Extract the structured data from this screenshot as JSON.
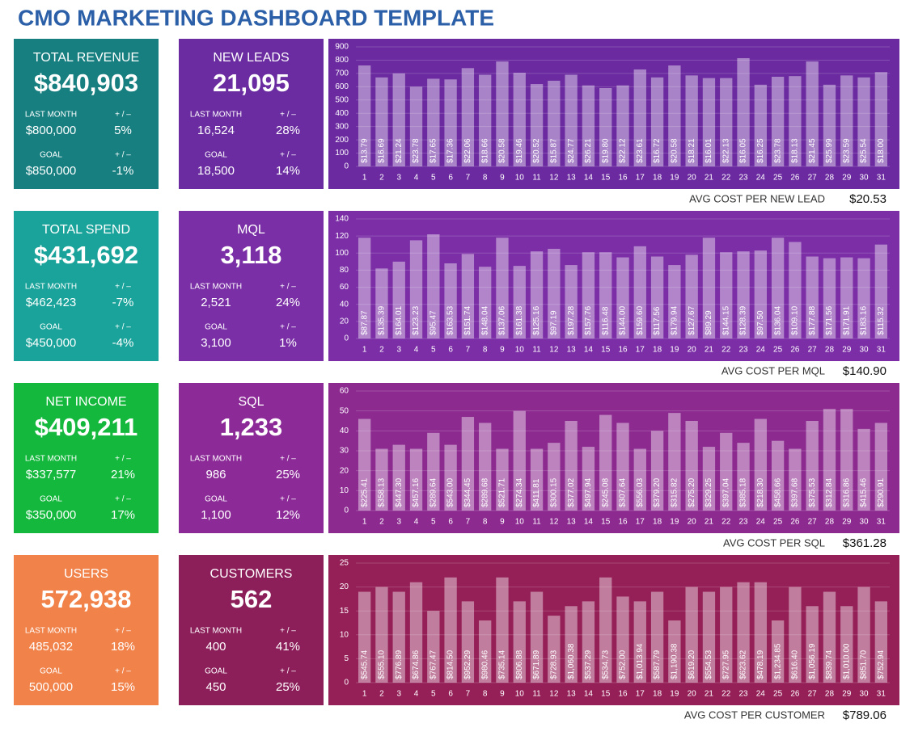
{
  "title": "CMO MARKETING DASHBOARD TEMPLATE",
  "kpis": [
    {
      "title": "TOTAL REVENUE",
      "value": "$840,903",
      "color": "#177f80",
      "last_month_label": "LAST MONTH",
      "change_label": "+ / –",
      "last_month": "$800,000",
      "last_month_change": "5%",
      "goal_label": "GOAL",
      "goal": "$850,000",
      "goal_change": "-1%"
    },
    {
      "title": "NEW LEADS",
      "value": "21,095",
      "color": "#6a2ca0",
      "last_month_label": "LAST MONTH",
      "change_label": "+ / –",
      "last_month": "16,524",
      "last_month_change": "28%",
      "goal_label": "GOAL",
      "goal": "18,500",
      "goal_change": "14%"
    },
    {
      "title": "TOTAL SPEND",
      "value": "$431,692",
      "color": "#1aa39a",
      "last_month_label": "LAST MONTH",
      "change_label": "+ / –",
      "last_month": "$462,423",
      "last_month_change": "-7%",
      "goal_label": "GOAL",
      "goal": "$450,000",
      "goal_change": "-4%"
    },
    {
      "title": "MQL",
      "value": "3,118",
      "color": "#7a2fa6",
      "last_month_label": "LAST MONTH",
      "change_label": "+ / –",
      "last_month": "2,521",
      "last_month_change": "24%",
      "goal_label": "GOAL",
      "goal": "3,100",
      "goal_change": "1%"
    },
    {
      "title": "NET INCOME",
      "value": "$409,211",
      "color": "#13b83c",
      "last_month_label": "LAST MONTH",
      "change_label": "+ / –",
      "last_month": "$337,577",
      "last_month_change": "21%",
      "goal_label": "GOAL",
      "goal": "$350,000",
      "goal_change": "17%"
    },
    {
      "title": "SQL",
      "value": "1,233",
      "color": "#8c2a98",
      "last_month_label": "LAST MONTH",
      "change_label": "+ / –",
      "last_month": "986",
      "last_month_change": "25%",
      "goal_label": "GOAL",
      "goal": "1,100",
      "goal_change": "12%"
    },
    {
      "title": "USERS",
      "value": "572,938",
      "color": "#f0824a",
      "last_month_label": "LAST MONTH",
      "change_label": "+ / –",
      "last_month": "485,032",
      "last_month_change": "18%",
      "goal_label": "GOAL",
      "goal": "500,000",
      "goal_change": "15%"
    },
    {
      "title": "CUSTOMERS",
      "value": "562",
      "color": "#8c1e5a",
      "last_month_label": "LAST MONTH",
      "change_label": "+ / –",
      "last_month": "400",
      "last_month_change": "41%",
      "goal_label": "GOAL",
      "goal": "450",
      "goal_change": "25%"
    }
  ],
  "chart_data": [
    {
      "type": "bar",
      "background": "#6b2aa0",
      "color": "rgba(255,255,255,0.42)",
      "grid": true,
      "categories": [
        1,
        2,
        3,
        4,
        5,
        6,
        7,
        8,
        9,
        10,
        11,
        12,
        13,
        14,
        15,
        16,
        17,
        18,
        19,
        20,
        21,
        22,
        23,
        24,
        25,
        26,
        27,
        28,
        29,
        30,
        31
      ],
      "values": [
        760,
        670,
        700,
        600,
        660,
        655,
        740,
        690,
        790,
        705,
        620,
        645,
        690,
        610,
        590,
        610,
        730,
        670,
        760,
        685,
        665,
        665,
        815,
        615,
        675,
        680,
        790,
        615,
        685,
        670,
        710
      ],
      "bar_labels": [
        "$13.79",
        "$16.69",
        "$21.24",
        "$23.78",
        "$17.65",
        "$17.36",
        "$22.06",
        "$18.66",
        "$20.58",
        "$19.46",
        "$20.52",
        "$15.87",
        "$24.77",
        "$26.21",
        "$19.80",
        "$22.12",
        "$23.61",
        "$16.72",
        "$20.58",
        "$18.21",
        "$16.01",
        "$22.13",
        "$16.05",
        "$16.25",
        "$23.78",
        "$18.13",
        "$21.45",
        "$25.99",
        "$23.59",
        "$25.54",
        "$18.00"
      ],
      "ylim": [
        0,
        900
      ],
      "yticks": [
        0,
        100,
        200,
        300,
        400,
        500,
        600,
        700,
        800,
        900
      ],
      "avg_label": "AVG COST PER NEW LEAD",
      "avg_value": "$20.53"
    },
    {
      "type": "bar",
      "background": "#7b2ea6",
      "color": "rgba(255,255,255,0.42)",
      "grid": true,
      "categories": [
        1,
        2,
        3,
        4,
        5,
        6,
        7,
        8,
        9,
        10,
        11,
        12,
        13,
        14,
        15,
        16,
        17,
        18,
        19,
        20,
        21,
        22,
        23,
        24,
        25,
        26,
        27,
        28,
        29,
        30,
        31
      ],
      "values": [
        118,
        82,
        90,
        115,
        122,
        88,
        99,
        84,
        118,
        85,
        102,
        105,
        86,
        101,
        101,
        95,
        108,
        96,
        86,
        98,
        118,
        101,
        102,
        103,
        118,
        113,
        96,
        94,
        95,
        94,
        110
      ],
      "bar_labels": [
        "$87.87",
        "$135.39",
        "$164.01",
        "$123.23",
        "$95.47",
        "$163.53",
        "$151.74",
        "$148.04",
        "$137.06",
        "$161.38",
        "$125.16",
        "$97.19",
        "$197.28",
        "$157.76",
        "$116.48",
        "$144.00",
        "$159.60",
        "$117.56",
        "$179.94",
        "$127.67",
        "$89.29",
        "$144.15",
        "$128.39",
        "$97.50",
        "$136.04",
        "$109.10",
        "$177.88",
        "$171.56",
        "$171.91",
        "$183.16",
        "$115.32"
      ],
      "ylim": [
        0,
        140
      ],
      "yticks": [
        0,
        20,
        40,
        60,
        80,
        100,
        120,
        140
      ],
      "avg_label": "AVG COST PER MQL",
      "avg_value": "$140.90"
    },
    {
      "type": "bar",
      "background": "#8c2a90",
      "color": "rgba(255,255,255,0.42)",
      "grid": true,
      "categories": [
        1,
        2,
        3,
        4,
        5,
        6,
        7,
        8,
        9,
        10,
        11,
        12,
        13,
        14,
        15,
        16,
        17,
        18,
        19,
        20,
        21,
        22,
        23,
        24,
        25,
        26,
        27,
        28,
        29,
        30,
        31
      ],
      "values": [
        46,
        31,
        33,
        31,
        39,
        33,
        47,
        44,
        31,
        50,
        31,
        34,
        45,
        32,
        48,
        44,
        31,
        40,
        49,
        45,
        32,
        39,
        34,
        46,
        35,
        31,
        45,
        51,
        51,
        41,
        44
      ],
      "bar_labels": [
        "$225.41",
        "$358.13",
        "$447.30",
        "$457.16",
        "$289.64",
        "$543.00",
        "$344.45",
        "$289.68",
        "$521.71",
        "$274.34",
        "$411.81",
        "$300.15",
        "$377.02",
        "$497.94",
        "$245.08",
        "$307.64",
        "$556.03",
        "$379.20",
        "$315.82",
        "$275.20",
        "$329.25",
        "$397.04",
        "$385.18",
        "$218.30",
        "$458.66",
        "$397.68",
        "$375.53",
        "$312.84",
        "$316.86",
        "$415.46",
        "$290.91"
      ],
      "ylim": [
        0,
        60
      ],
      "yticks": [
        0,
        10,
        20,
        30,
        40,
        50,
        60
      ],
      "avg_label": "AVG COST PER SQL",
      "avg_value": "$361.28"
    },
    {
      "type": "bar",
      "background": "#951f57",
      "color": "rgba(255,255,255,0.42)",
      "grid": true,
      "categories": [
        1,
        2,
        3,
        4,
        5,
        6,
        7,
        8,
        9,
        10,
        11,
        12,
        13,
        14,
        15,
        16,
        17,
        18,
        19,
        20,
        21,
        22,
        23,
        24,
        25,
        26,
        27,
        28,
        29,
        30,
        31
      ],
      "values": [
        19,
        20,
        19,
        21,
        15,
        22,
        17,
        13,
        22,
        17,
        19,
        14,
        16,
        17,
        22,
        18,
        17,
        19,
        13,
        20,
        19,
        20,
        21,
        21,
        13,
        20,
        16,
        19,
        16,
        20,
        17
      ],
      "bar_labels": [
        "$545.74",
        "$555.10",
        "$776.89",
        "$674.86",
        "$767.47",
        "$814.50",
        "$952.29",
        "$980.46",
        "$735.14",
        "$806.88",
        "$671.89",
        "$728.93",
        "$1,060.38",
        "$537.29",
        "$534.73",
        "$752.00",
        "$1,013.94",
        "$587.79",
        "$1,190.38",
        "$619.20",
        "$554.53",
        "$727.95",
        "$623.62",
        "$478.19",
        "$1,234.85",
        "$616.40",
        "$1,056.19",
        "$839.74",
        "$1,010.00",
        "$851.70",
        "$752.94"
      ],
      "ylim": [
        0,
        25
      ],
      "yticks": [
        0,
        5,
        10,
        15,
        20,
        25
      ],
      "avg_label": "AVG COST PER CUSTOMER",
      "avg_value": "$789.06"
    }
  ]
}
